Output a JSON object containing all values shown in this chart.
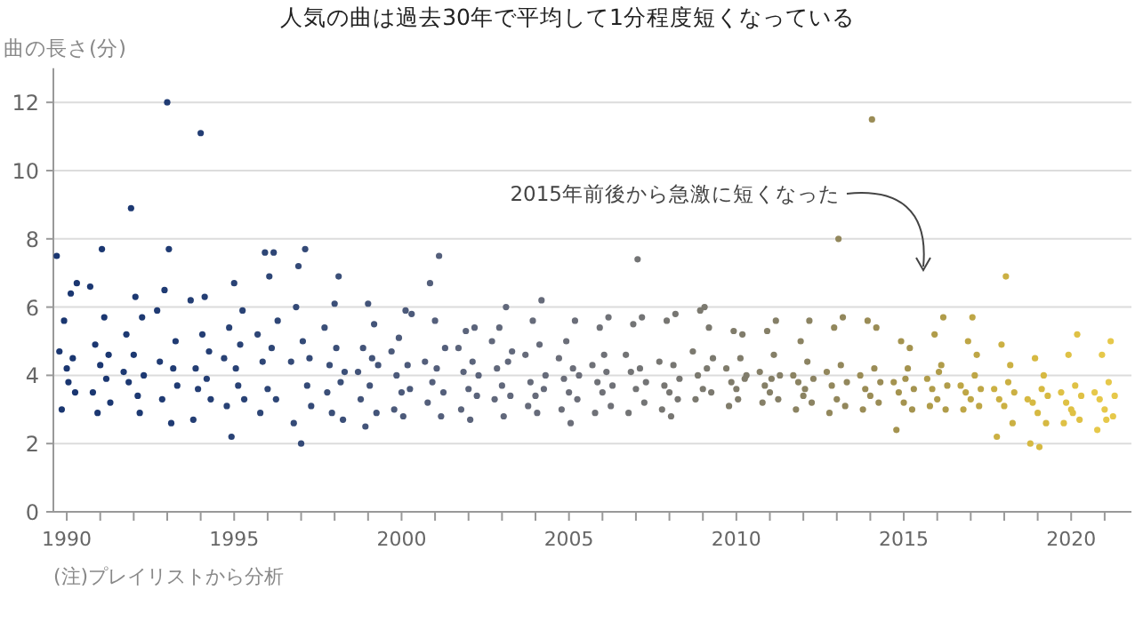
{
  "chart_data": {
    "type": "scatter",
    "title": "人気の曲は過去30年で平均して1分程度短くなっている",
    "ylabel": "曲の長さ(分)",
    "annotations": [
      "2015年前後から急激に短くなった",
      "(注)プレイリストから分析"
    ],
    "marker": "circle",
    "grid": "y",
    "xlim": [
      1989.6,
      2021.8
    ],
    "ylim": [
      0,
      13
    ],
    "xticks": [
      1990,
      {
        "value": 1991,
        "label": null
      },
      {
        "value": 1992,
        "label": null
      },
      {
        "value": 1993,
        "label": null
      },
      {
        "value": 1994,
        "label": null
      },
      1995,
      {
        "value": 1996,
        "label": null
      },
      {
        "value": 1997,
        "label": null
      },
      {
        "value": 1998,
        "label": null
      },
      {
        "value": 1999,
        "label": null
      },
      2000,
      {
        "value": 2001,
        "label": null
      },
      {
        "value": 2002,
        "label": null
      },
      {
        "value": 2003,
        "label": null
      },
      {
        "value": 2004,
        "label": null
      },
      2005,
      {
        "value": 2006,
        "label": null
      },
      {
        "value": 2007,
        "label": null
      },
      {
        "value": 2008,
        "label": null
      },
      {
        "value": 2009,
        "label": null
      },
      2010,
      {
        "value": 2011,
        "label": null
      },
      {
        "value": 2012,
        "label": null
      },
      {
        "value": 2013,
        "label": null
      },
      {
        "value": 2014,
        "label": null
      },
      2015,
      {
        "value": 2016,
        "label": null
      },
      {
        "value": 2017,
        "label": null
      },
      {
        "value": 2018,
        "label": null
      },
      {
        "value": 2019,
        "label": null
      },
      2020,
      {
        "value": 2021,
        "label": null
      }
    ],
    "yticks": [
      0,
      2,
      4,
      6,
      8,
      10,
      12
    ],
    "series": [
      {
        "color": "#1a3670",
        "x": [
          1989.7,
          1989.78,
          1989.85,
          1989.92,
          1990,
          1990.05,
          1990.12,
          1990.18,
          1990.25,
          1990.3
        ],
        "values": [
          7.5,
          4.7,
          3.0,
          5.6,
          4.2,
          3.8,
          6.4,
          4.5,
          3.5,
          6.7
        ]
      },
      {
        "color": "#1b3771",
        "x": [
          1990.7,
          1990.78,
          1990.85,
          1990.92,
          1991,
          1991.05,
          1991.12,
          1991.18,
          1991.25,
          1991.3
        ],
        "values": [
          6.6,
          3.5,
          4.9,
          2.9,
          4.3,
          7.7,
          5.7,
          3.9,
          4.6,
          3.2
        ]
      },
      {
        "color": "#1d3972",
        "x": [
          1991.7,
          1991.78,
          1991.85,
          1991.92,
          1992,
          1992.05,
          1992.12,
          1992.18,
          1992.25,
          1992.3
        ],
        "values": [
          4.1,
          5.2,
          3.8,
          8.9,
          4.6,
          6.3,
          3.4,
          2.9,
          5.7,
          4.0
        ]
      },
      {
        "color": "#203b73",
        "x": [
          1992.7,
          1992.78,
          1992.85,
          1992.92,
          1993,
          1993.05,
          1993.12,
          1993.18,
          1993.25,
          1993.3
        ],
        "values": [
          5.9,
          4.4,
          3.3,
          6.5,
          12.0,
          7.7,
          2.6,
          4.2,
          5.0,
          3.7
        ]
      },
      {
        "color": "#243e74",
        "x": [
          1993.7,
          1993.78,
          1993.85,
          1993.92,
          1994,
          1994.05,
          1994.12,
          1994.18,
          1994.25,
          1994.3
        ],
        "values": [
          6.2,
          2.7,
          4.2,
          3.6,
          11.1,
          5.2,
          6.3,
          3.9,
          4.7,
          3.3
        ]
      },
      {
        "color": "#294275",
        "x": [
          1994.7,
          1994.78,
          1994.85,
          1994.92,
          1995,
          1995.05,
          1995.12,
          1995.18,
          1995.25,
          1995.3
        ],
        "values": [
          4.5,
          3.1,
          5.4,
          2.2,
          6.7,
          4.2,
          3.7,
          4.9,
          5.9,
          3.3
        ]
      },
      {
        "color": "#2e4676",
        "x": [
          1995.7,
          1995.78,
          1995.85,
          1995.92,
          1996,
          1996.05,
          1996.12,
          1996.18,
          1996.25,
          1996.3
        ],
        "values": [
          5.2,
          2.9,
          4.4,
          7.6,
          3.6,
          6.9,
          4.8,
          7.6,
          3.3,
          5.6
        ]
      },
      {
        "color": "#344a77",
        "x": [
          1996.7,
          1996.78,
          1996.85,
          1996.92,
          1997,
          1997.05,
          1997.12,
          1997.18,
          1997.25,
          1997.3
        ],
        "values": [
          4.4,
          2.6,
          6.0,
          7.2,
          2.0,
          5.0,
          7.7,
          3.7,
          4.5,
          3.1
        ]
      },
      {
        "color": "#3b4f78",
        "x": [
          1997.7,
          1997.78,
          1997.85,
          1997.92,
          1998,
          1998.05,
          1998.12,
          1998.18,
          1998.25,
          1998.3
        ],
        "values": [
          5.4,
          3.5,
          4.3,
          2.9,
          6.1,
          4.8,
          6.9,
          3.8,
          2.7,
          4.1
        ]
      },
      {
        "color": "#435479",
        "x": [
          1998.7,
          1998.78,
          1998.85,
          1998.92,
          1999,
          1999.05,
          1999.12,
          1999.18,
          1999.25,
          1999.3
        ],
        "values": [
          4.1,
          3.3,
          4.8,
          2.5,
          6.1,
          3.7,
          4.5,
          5.5,
          2.9,
          4.3
        ]
      },
      {
        "color": "#4c5a7a",
        "x": [
          1999.7,
          1999.78,
          1999.85,
          1999.92,
          2000,
          2000.05,
          2000.12,
          2000.18,
          2000.25,
          2000.3
        ],
        "values": [
          4.7,
          3.0,
          4.0,
          5.1,
          3.5,
          2.8,
          5.9,
          4.3,
          3.6,
          5.8
        ]
      },
      {
        "color": "#545f7b",
        "x": [
          2000.7,
          2000.78,
          2000.85,
          2000.92,
          2001,
          2001.05,
          2001.12,
          2001.18,
          2001.25,
          2001.3
        ],
        "values": [
          4.4,
          3.2,
          6.7,
          3.8,
          5.6,
          4.2,
          7.5,
          2.8,
          3.5,
          4.8
        ]
      },
      {
        "color": "#5b647b",
        "x": [
          2001.7,
          2001.78,
          2001.85,
          2001.92,
          2002,
          2002.05,
          2002.12,
          2002.18,
          2002.25,
          2002.3
        ],
        "values": [
          4.8,
          3.0,
          4.1,
          5.3,
          3.6,
          2.7,
          4.4,
          5.4,
          3.4,
          4.0
        ]
      },
      {
        "color": "#61687b",
        "x": [
          2002.7,
          2002.78,
          2002.85,
          2002.92,
          2003,
          2003.05,
          2003.12,
          2003.18,
          2003.25,
          2003.3
        ],
        "values": [
          5.0,
          3.3,
          4.2,
          5.4,
          3.7,
          2.8,
          6.0,
          4.4,
          3.4,
          4.7
        ]
      },
      {
        "color": "#666b7a",
        "x": [
          2003.7,
          2003.78,
          2003.85,
          2003.92,
          2004,
          2004.05,
          2004.12,
          2004.18,
          2004.25,
          2004.3
        ],
        "values": [
          4.6,
          3.1,
          3.8,
          5.6,
          3.4,
          2.9,
          4.9,
          6.2,
          3.6,
          4.0
        ]
      },
      {
        "color": "#6b6e79",
        "x": [
          2004.7,
          2004.78,
          2004.85,
          2004.92,
          2005,
          2005.05,
          2005.12,
          2005.18,
          2005.25,
          2005.3
        ],
        "values": [
          4.5,
          3.0,
          3.9,
          5.0,
          3.5,
          2.6,
          4.2,
          5.6,
          3.3,
          4.0
        ]
      },
      {
        "color": "#6f7177",
        "x": [
          2005.7,
          2005.78,
          2005.85,
          2005.92,
          2006,
          2006.05,
          2006.12,
          2006.18,
          2006.25,
          2006.3
        ],
        "values": [
          4.3,
          2.9,
          3.8,
          5.4,
          3.5,
          4.6,
          4.1,
          5.7,
          3.1,
          3.7
        ]
      },
      {
        "color": "#737475",
        "x": [
          2006.7,
          2006.78,
          2006.85,
          2006.92,
          2007,
          2007.05,
          2007.12,
          2007.18,
          2007.25,
          2007.3
        ],
        "values": [
          4.6,
          2.9,
          4.1,
          5.5,
          3.6,
          7.4,
          4.2,
          5.7,
          3.2,
          3.8
        ]
      },
      {
        "color": "#777672",
        "x": [
          2007.7,
          2007.78,
          2007.85,
          2007.92,
          2008,
          2008.05,
          2008.12,
          2008.18,
          2008.25,
          2008.3
        ],
        "values": [
          4.4,
          3.0,
          3.7,
          5.6,
          3.5,
          2.8,
          4.3,
          5.8,
          3.3,
          3.9
        ]
      },
      {
        "color": "#7b796f",
        "x": [
          2008.7,
          2008.78,
          2008.85,
          2008.92,
          2009,
          2009.05,
          2009.12,
          2009.18,
          2009.25,
          2009.3
        ],
        "values": [
          4.7,
          3.3,
          4.0,
          5.9,
          3.6,
          6.0,
          4.2,
          5.4,
          3.5,
          4.5
        ]
      },
      {
        "color": "#807c6b",
        "x": [
          2009.7,
          2009.78,
          2009.85,
          2009.92,
          2010,
          2010.05,
          2010.12,
          2010.18,
          2010.25,
          2010.3
        ],
        "values": [
          4.2,
          3.1,
          3.8,
          5.3,
          3.6,
          3.3,
          4.5,
          5.2,
          3.9,
          4.0
        ]
      },
      {
        "color": "#857f67",
        "x": [
          2010.7,
          2010.78,
          2010.85,
          2010.92,
          2011,
          2011.05,
          2011.12,
          2011.18,
          2011.25,
          2011.3
        ],
        "values": [
          4.1,
          3.2,
          3.7,
          5.3,
          3.5,
          3.9,
          4.6,
          5.6,
          3.3,
          4.0
        ]
      },
      {
        "color": "#8b8362",
        "x": [
          2011.7,
          2011.78,
          2011.85,
          2011.92,
          2012,
          2012.05,
          2012.12,
          2012.18,
          2012.25,
          2012.3
        ],
        "values": [
          4.0,
          3.0,
          3.8,
          5.0,
          3.4,
          3.6,
          4.4,
          5.6,
          3.2,
          3.9
        ]
      },
      {
        "color": "#92875c",
        "x": [
          2012.7,
          2012.78,
          2012.85,
          2012.92,
          2013,
          2013.05,
          2013.12,
          2013.18,
          2013.25,
          2013.3
        ],
        "values": [
          4.1,
          2.9,
          3.7,
          5.4,
          3.3,
          8.0,
          4.3,
          5.7,
          3.1,
          3.8
        ]
      },
      {
        "color": "#9a8c56",
        "x": [
          2013.7,
          2013.78,
          2013.85,
          2013.92,
          2014,
          2014.05,
          2014.12,
          2014.18,
          2014.25,
          2014.3
        ],
        "values": [
          4.0,
          3.0,
          3.6,
          5.6,
          3.4,
          11.5,
          4.2,
          5.4,
          3.2,
          3.8
        ]
      },
      {
        "color": "#a4934f",
        "x": [
          2014.7,
          2014.78,
          2014.85,
          2014.92,
          2015,
          2015.05,
          2015.12,
          2015.18,
          2015.25,
          2015.3
        ],
        "values": [
          3.8,
          2.4,
          3.5,
          5.0,
          3.2,
          3.9,
          4.2,
          4.8,
          3.0,
          3.6
        ]
      },
      {
        "color": "#b09c4a",
        "x": [
          2015.7,
          2015.78,
          2015.85,
          2015.92,
          2016,
          2016.05,
          2016.12,
          2016.18,
          2016.25,
          2016.3
        ],
        "values": [
          3.9,
          3.1,
          3.6,
          5.2,
          3.3,
          4.1,
          4.3,
          5.7,
          3.0,
          3.7
        ]
      },
      {
        "color": "#bea646",
        "x": [
          2016.7,
          2016.78,
          2016.85,
          2016.92,
          2017,
          2017.05,
          2017.12,
          2017.18,
          2017.25,
          2017.3
        ],
        "values": [
          3.7,
          3.0,
          3.5,
          5.0,
          3.3,
          5.7,
          4.0,
          4.6,
          3.1,
          3.6
        ]
      },
      {
        "color": "#cbb043",
        "x": [
          2017.7,
          2017.78,
          2017.85,
          2017.92,
          2018,
          2018.05,
          2018.12,
          2018.18,
          2018.25,
          2018.3
        ],
        "values": [
          3.6,
          2.2,
          3.3,
          4.9,
          3.1,
          6.9,
          3.8,
          4.3,
          2.6,
          3.5
        ]
      },
      {
        "color": "#d6b942",
        "x": [
          2018.7,
          2018.78,
          2018.85,
          2018.92,
          2019,
          2019.05,
          2019.12,
          2019.18,
          2019.25,
          2019.3
        ],
        "values": [
          3.3,
          2.0,
          3.2,
          4.5,
          2.9,
          1.9,
          3.6,
          4.0,
          2.6,
          3.4
        ]
      },
      {
        "color": "#dfc145",
        "x": [
          2019.7,
          2019.78,
          2019.85,
          2019.92,
          2020,
          2020.05,
          2020.12,
          2020.18,
          2020.25,
          2020.3
        ],
        "values": [
          3.5,
          2.6,
          3.2,
          4.6,
          3.0,
          2.9,
          3.7,
          5.2,
          2.7,
          3.4
        ]
      },
      {
        "color": "#e6c84a",
        "x": [
          2020.7,
          2020.78,
          2020.85,
          2020.92,
          2021,
          2021.05,
          2021.12,
          2021.18,
          2021.25,
          2021.3
        ],
        "values": [
          3.5,
          2.4,
          3.3,
          4.6,
          3.0,
          2.7,
          3.8,
          5.0,
          2.8,
          3.4
        ]
      }
    ]
  }
}
